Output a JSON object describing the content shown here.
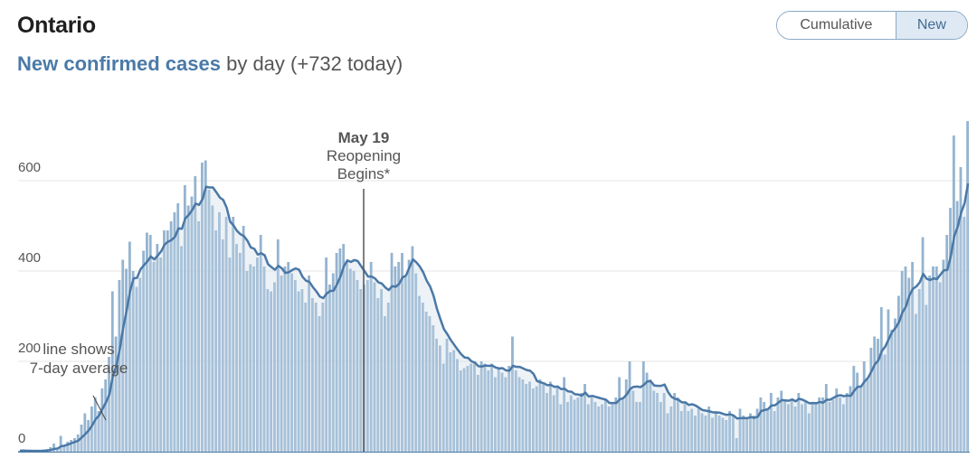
{
  "header": {
    "title": "Ontario"
  },
  "subtitle": {
    "accent": "New confirmed cases",
    "rest": " by day (+732 today)"
  },
  "toggle": {
    "cumulative_label": "Cumulative",
    "new_label": "New",
    "selected": "New"
  },
  "colors": {
    "bar": "#94b4d0",
    "line": "#4a78a6",
    "area": "#cbdbe8",
    "accent": "#4a7aa7",
    "marker": "#555555"
  },
  "chart_data": {
    "type": "bar",
    "ylim": [
      0,
      730
    ],
    "yticks": [
      0,
      200,
      400,
      600
    ],
    "ytick_labels": [
      "0",
      "200",
      "400",
      "600"
    ],
    "grid": true,
    "series": [
      {
        "values": [
          2,
          3,
          1,
          2,
          1,
          1,
          3,
          4,
          6,
          10,
          18,
          8,
          35,
          12,
          22,
          26,
          30,
          38,
          60,
          85,
          70,
          100,
          120,
          90,
          140,
          160,
          210,
          355,
          255,
          380,
          425,
          405,
          465,
          400,
          365,
          385,
          445,
          485,
          480,
          420,
          460,
          430,
          490,
          490,
          510,
          530,
          550,
          455,
          590,
          545,
          565,
          610,
          510,
          640,
          645,
          580,
          545,
          490,
          530,
          470,
          520,
          430,
          520,
          460,
          440,
          500,
          400,
          415,
          410,
          430,
          480,
          410,
          360,
          355,
          375,
          470,
          390,
          410,
          420,
          395,
          380,
          355,
          360,
          330,
          390,
          340,
          330,
          300,
          330,
          430,
          370,
          395,
          440,
          450,
          460,
          420,
          405,
          400,
          380,
          360,
          370,
          380,
          420,
          375,
          340,
          360,
          300,
          330,
          440,
          410,
          420,
          440,
          390,
          425,
          455,
          395,
          345,
          330,
          310,
          300,
          280,
          250,
          235,
          195,
          250,
          220,
          225,
          205,
          180,
          185,
          190,
          195,
          200,
          170,
          200,
          195,
          180,
          195,
          165,
          185,
          175,
          165,
          190,
          255,
          180,
          165,
          160,
          150,
          155,
          140,
          145,
          160,
          150,
          130,
          155,
          125,
          145,
          105,
          165,
          110,
          125,
          115,
          120,
          130,
          150,
          105,
          120,
          110,
          100,
          105,
          115,
          100,
          105,
          120,
          165,
          120,
          160,
          200,
          135,
          110,
          110,
          200,
          175,
          160,
          135,
          130,
          110,
          130,
          85,
          100,
          130,
          120,
          90,
          110,
          90,
          95,
          80,
          95,
          85,
          80,
          100,
          75,
          90,
          80,
          75,
          70,
          90,
          80,
          30,
          95,
          80,
          75,
          85,
          80,
          95,
          120,
          110,
          95,
          130,
          90,
          120,
          135,
          115,
          105,
          115,
          100,
          130,
          105,
          110,
          85,
          110,
          110,
          120,
          120,
          150,
          110,
          115,
          140,
          120,
          105,
          130,
          145,
          190,
          175,
          145,
          200,
          160,
          230,
          255,
          250,
          320,
          215,
          315,
          270,
          295,
          345,
          400,
          410,
          385,
          420,
          305,
          360,
          475,
          325,
          390,
          410,
          410,
          375,
          425,
          480,
          540,
          700,
          555,
          630,
          520,
          732
        ]
      }
    ],
    "annotations": [
      {
        "date": "May 19",
        "text_lines": [
          "Reopening",
          "Begins*"
        ]
      },
      {
        "text_lines": [
          "line shows",
          "7-day average"
        ]
      }
    ]
  }
}
